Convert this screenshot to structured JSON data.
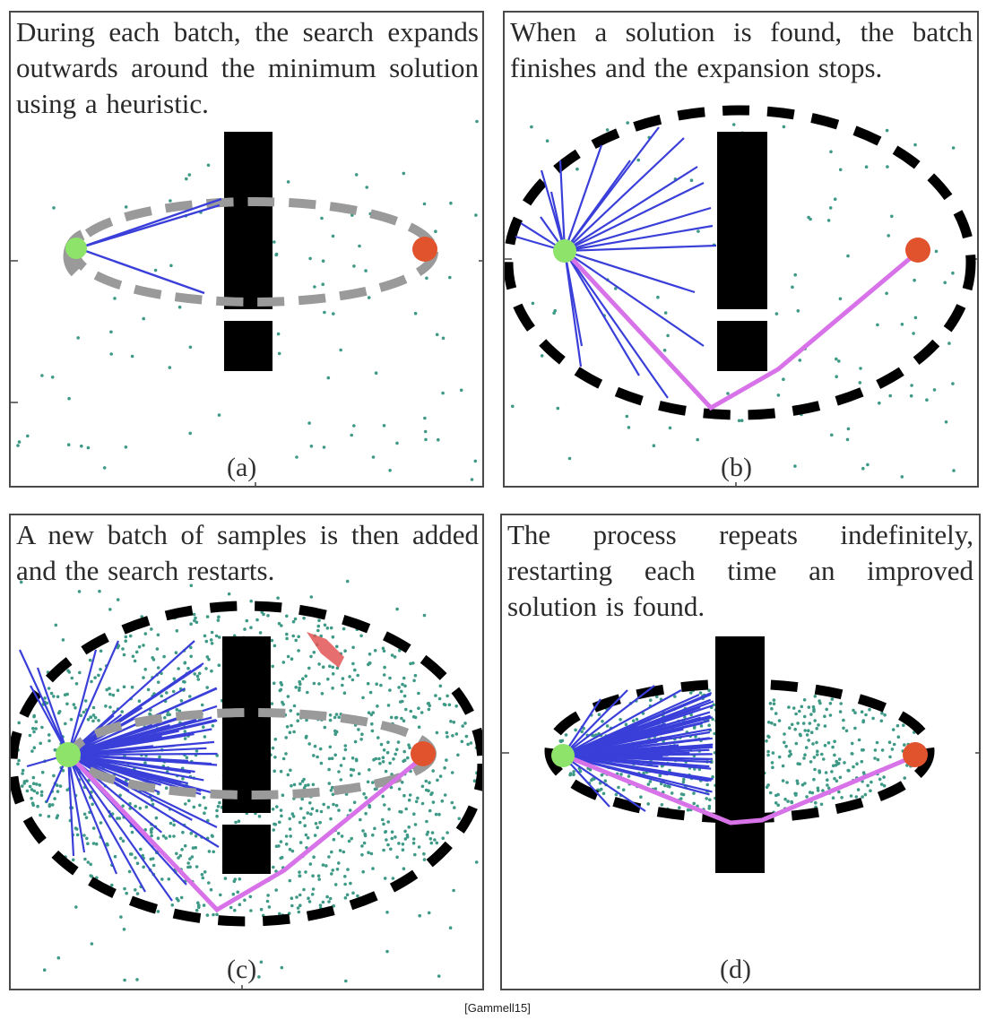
{
  "panels": [
    {
      "id": "a",
      "label": "(a)",
      "text": "During each batch, the search expands outwards around the minimum solution using a heuristic."
    },
    {
      "id": "b",
      "label": "(b)",
      "text": "When a solution is found, the batch finishes and the expansion stops."
    },
    {
      "id": "c",
      "label": "(c)",
      "text": "A new batch of samples is then added and the search restarts."
    },
    {
      "id": "d",
      "label": "(d)",
      "text": "The process repeats indefinitely, restarting each time an improved solution is found."
    }
  ],
  "citation": "[Gammell15]",
  "colors": {
    "start": "#8ee36a",
    "goal": "#e0532d",
    "edge": "#3a3fd9",
    "path": "#d872e8",
    "obstacle": "#000000",
    "sample": "#3e9a87",
    "ellipse_active": "#9a9a9a",
    "ellipse_bound": "#000000",
    "highlight": "#e25555"
  }
}
